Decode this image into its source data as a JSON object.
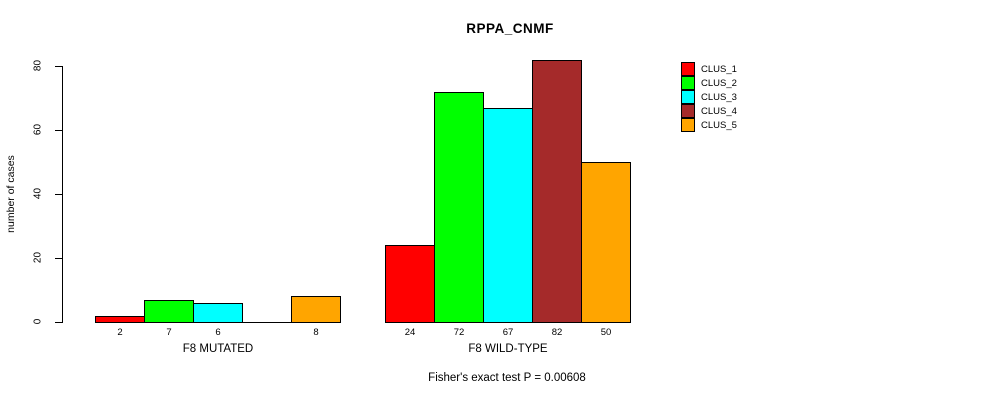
{
  "title": "RPPA_CNMF",
  "chart_data": {
    "type": "bar",
    "title": "RPPA_CNMF",
    "xlabel": "",
    "ylabel": "number of cases",
    "yticks": [
      0,
      20,
      40,
      60,
      80
    ],
    "ylim": [
      0,
      83
    ],
    "grid": false,
    "legend_position": "right",
    "series_names": [
      "CLUS_1",
      "CLUS_2",
      "CLUS_3",
      "CLUS_4",
      "CLUS_5"
    ],
    "series_colors": [
      "#ff0000",
      "#00ff00",
      "#00ffff",
      "#a52a2a",
      "#ffa500"
    ],
    "groups": [
      {
        "label": "F8 MUTATED",
        "values": [
          2,
          7,
          6,
          0,
          8
        ],
        "bar_labels": [
          "2",
          "7",
          "6",
          "",
          "8"
        ]
      },
      {
        "label": "F8 WILD-TYPE",
        "values": [
          24,
          72,
          67,
          82,
          50
        ],
        "bar_labels": [
          "24",
          "72",
          "67",
          "82",
          "50"
        ]
      }
    ],
    "annotation": "Fisher's exact test P = 0.00608"
  }
}
